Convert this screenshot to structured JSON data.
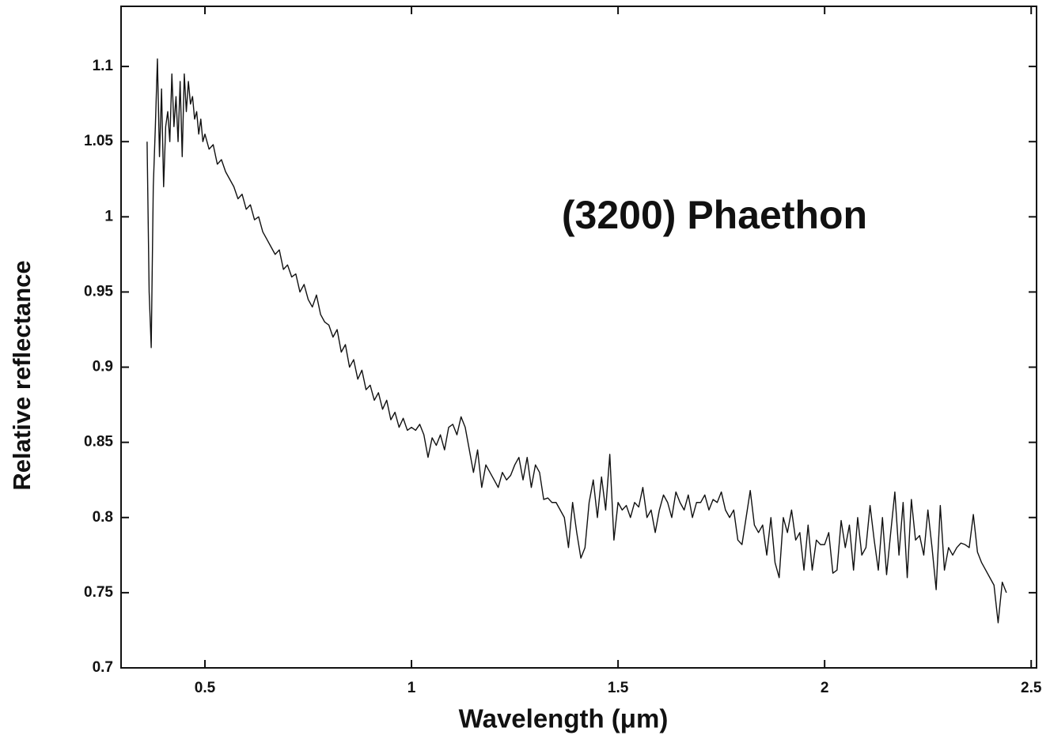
{
  "chart_data": {
    "type": "line",
    "annotation": "(3200) Phaethon",
    "xlabel": "Wavelength (μm)",
    "ylabel": "Relative reflectance",
    "xlim": [
      0.297,
      2.513
    ],
    "ylim": [
      0.7,
      1.14
    ],
    "xticks": [
      0.5,
      1,
      1.5,
      2,
      2.5
    ],
    "yticks": [
      0.7,
      0.75,
      0.8,
      0.85,
      0.9,
      0.95,
      1,
      1.05,
      1.1
    ],
    "color": "#111111",
    "x": [
      0.36,
      0.365,
      0.37,
      0.375,
      0.38,
      0.385,
      0.39,
      0.395,
      0.4,
      0.405,
      0.41,
      0.415,
      0.42,
      0.425,
      0.43,
      0.435,
      0.44,
      0.445,
      0.45,
      0.455,
      0.46,
      0.465,
      0.47,
      0.475,
      0.48,
      0.485,
      0.49,
      0.495,
      0.5,
      0.51,
      0.52,
      0.53,
      0.54,
      0.55,
      0.56,
      0.57,
      0.58,
      0.59,
      0.6,
      0.61,
      0.62,
      0.63,
      0.64,
      0.65,
      0.66,
      0.67,
      0.68,
      0.69,
      0.7,
      0.71,
      0.72,
      0.73,
      0.74,
      0.75,
      0.76,
      0.77,
      0.78,
      0.79,
      0.8,
      0.81,
      0.82,
      0.83,
      0.84,
      0.85,
      0.86,
      0.87,
      0.88,
      0.89,
      0.9,
      0.91,
      0.92,
      0.93,
      0.94,
      0.95,
      0.96,
      0.97,
      0.98,
      0.99,
      1.0,
      1.01,
      1.02,
      1.03,
      1.04,
      1.05,
      1.06,
      1.07,
      1.08,
      1.09,
      1.1,
      1.11,
      1.12,
      1.13,
      1.14,
      1.15,
      1.16,
      1.17,
      1.18,
      1.19,
      1.2,
      1.21,
      1.22,
      1.23,
      1.24,
      1.25,
      1.26,
      1.27,
      1.28,
      1.29,
      1.3,
      1.31,
      1.32,
      1.33,
      1.34,
      1.35,
      1.36,
      1.37,
      1.38,
      1.39,
      1.4,
      1.41,
      1.42,
      1.43,
      1.44,
      1.45,
      1.46,
      1.47,
      1.48,
      1.49,
      1.5,
      1.51,
      1.52,
      1.53,
      1.54,
      1.55,
      1.56,
      1.57,
      1.58,
      1.59,
      1.6,
      1.61,
      1.62,
      1.63,
      1.64,
      1.65,
      1.66,
      1.67,
      1.68,
      1.69,
      1.7,
      1.71,
      1.72,
      1.73,
      1.74,
      1.75,
      1.76,
      1.77,
      1.78,
      1.79,
      1.8,
      1.81,
      1.82,
      1.83,
      1.84,
      1.85,
      1.86,
      1.87,
      1.88,
      1.89,
      1.9,
      1.91,
      1.92,
      1.93,
      1.94,
      1.95,
      1.96,
      1.97,
      1.98,
      1.99,
      2.0,
      2.01,
      2.02,
      2.03,
      2.04,
      2.05,
      2.06,
      2.07,
      2.08,
      2.09,
      2.1,
      2.11,
      2.12,
      2.13,
      2.14,
      2.15,
      2.16,
      2.17,
      2.18,
      2.19,
      2.2,
      2.21,
      2.22,
      2.23,
      2.24,
      2.25,
      2.26,
      2.27,
      2.28,
      2.29,
      2.3,
      2.31,
      2.32,
      2.33,
      2.34,
      2.35,
      2.36,
      2.37,
      2.38,
      2.39,
      2.4,
      2.41,
      2.42,
      2.43,
      2.44
    ],
    "values": [
      1.05,
      0.95,
      0.913,
      1.02,
      1.06,
      1.105,
      1.04,
      1.085,
      1.02,
      1.06,
      1.07,
      1.05,
      1.095,
      1.06,
      1.08,
      1.05,
      1.09,
      1.04,
      1.095,
      1.07,
      1.09,
      1.075,
      1.08,
      1.065,
      1.07,
      1.055,
      1.065,
      1.05,
      1.055,
      1.045,
      1.048,
      1.035,
      1.038,
      1.03,
      1.025,
      1.02,
      1.012,
      1.015,
      1.005,
      1.008,
      0.998,
      1.0,
      0.99,
      0.985,
      0.98,
      0.975,
      0.978,
      0.965,
      0.968,
      0.96,
      0.962,
      0.95,
      0.955,
      0.945,
      0.94,
      0.948,
      0.935,
      0.93,
      0.928,
      0.92,
      0.925,
      0.91,
      0.915,
      0.9,
      0.905,
      0.892,
      0.898,
      0.885,
      0.888,
      0.878,
      0.883,
      0.872,
      0.878,
      0.865,
      0.87,
      0.86,
      0.866,
      0.858,
      0.86,
      0.858,
      0.862,
      0.855,
      0.84,
      0.853,
      0.848,
      0.855,
      0.845,
      0.86,
      0.862,
      0.855,
      0.867,
      0.86,
      0.845,
      0.83,
      0.845,
      0.82,
      0.835,
      0.83,
      0.825,
      0.82,
      0.83,
      0.825,
      0.828,
      0.835,
      0.84,
      0.825,
      0.84,
      0.82,
      0.835,
      0.83,
      0.812,
      0.813,
      0.81,
      0.81,
      0.805,
      0.8,
      0.78,
      0.81,
      0.79,
      0.773,
      0.78,
      0.81,
      0.825,
      0.8,
      0.827,
      0.805,
      0.842,
      0.785,
      0.81,
      0.805,
      0.808,
      0.8,
      0.81,
      0.807,
      0.82,
      0.8,
      0.805,
      0.79,
      0.805,
      0.815,
      0.81,
      0.8,
      0.817,
      0.81,
      0.805,
      0.815,
      0.8,
      0.81,
      0.81,
      0.815,
      0.805,
      0.812,
      0.81,
      0.817,
      0.805,
      0.8,
      0.805,
      0.785,
      0.782,
      0.8,
      0.818,
      0.795,
      0.79,
      0.795,
      0.775,
      0.8,
      0.77,
      0.76,
      0.8,
      0.79,
      0.805,
      0.785,
      0.79,
      0.765,
      0.795,
      0.765,
      0.785,
      0.782,
      0.782,
      0.79,
      0.763,
      0.765,
      0.798,
      0.78,
      0.795,
      0.765,
      0.8,
      0.775,
      0.78,
      0.808,
      0.785,
      0.765,
      0.8,
      0.762,
      0.79,
      0.817,
      0.775,
      0.81,
      0.76,
      0.812,
      0.785,
      0.788,
      0.775,
      0.805,
      0.78,
      0.752,
      0.808,
      0.765,
      0.78,
      0.775,
      0.78,
      0.783,
      0.782,
      0.78,
      0.802,
      0.777,
      0.77,
      0.765,
      0.76,
      0.755,
      0.73,
      0.757,
      0.75
    ]
  }
}
